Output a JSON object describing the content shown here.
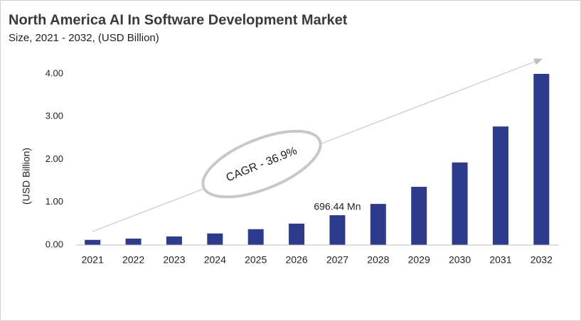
{
  "chart_data": {
    "type": "bar",
    "title": "North America AI In Software Development Market",
    "subtitle": "Size, 2021 - 2032, (USD Billion)",
    "y_label": "(USD Billion)",
    "annotation": "CAGR - 36.9%",
    "categories": [
      "2021",
      "2022",
      "2023",
      "2024",
      "2025",
      "2026",
      "2027",
      "2028",
      "2029",
      "2030",
      "2031",
      "2032"
    ],
    "values": [
      0.12,
      0.15,
      0.2,
      0.27,
      0.37,
      0.5,
      0.69644,
      0.96,
      1.36,
      1.93,
      2.77,
      4.0
    ],
    "value_labels": [
      null,
      null,
      null,
      null,
      null,
      null,
      "696.44 Mn",
      null,
      null,
      null,
      null,
      null
    ],
    "color": "#2e3a8c",
    "ylim": [
      0,
      4
    ],
    "yticks": [
      {
        "value": 0,
        "label": "0.00"
      },
      {
        "value": 1,
        "label": "1.00"
      },
      {
        "value": 2,
        "label": "2.00"
      },
      {
        "value": 3,
        "label": "3.00"
      },
      {
        "value": 4,
        "label": "4.00"
      }
    ],
    "grid": false
  }
}
